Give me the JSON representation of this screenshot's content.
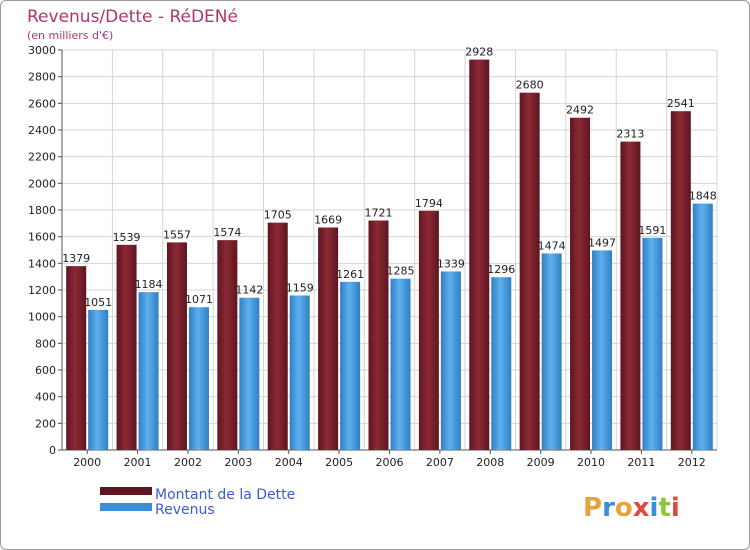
{
  "chart_data": {
    "type": "bar",
    "title": "Revenus/Dette - RéDENé",
    "subtitle": "(en milliers d'€)",
    "categories": [
      "2000",
      "2001",
      "2002",
      "2003",
      "2004",
      "2005",
      "2006",
      "2007",
      "2008",
      "2009",
      "2010",
      "2011",
      "2012"
    ],
    "series": [
      {
        "name": "Montant de la Dette",
        "color": "#7a1f2b",
        "values": [
          1379,
          1539,
          1557,
          1574,
          1705,
          1669,
          1721,
          1794,
          2928,
          2680,
          2492,
          2313,
          2541
        ]
      },
      {
        "name": "Revenus",
        "color": "#4a9fe0",
        "values": [
          1051,
          1184,
          1071,
          1142,
          1159,
          1261,
          1285,
          1339,
          1296,
          1474,
          1497,
          1591,
          1848
        ]
      }
    ],
    "ylim": [
      0,
      3000
    ],
    "yticks": [
      0,
      200,
      400,
      600,
      800,
      1000,
      1200,
      1400,
      1600,
      1800,
      2000,
      2200,
      2400,
      2600,
      2800,
      3000
    ],
    "grid": true,
    "legend_position": "bottom-left"
  },
  "logo": {
    "letters": [
      "P",
      "r",
      "o",
      "x",
      "i",
      "t",
      "i"
    ],
    "colors": [
      "#e8a23a",
      "#3a8fd9",
      "#e8a23a",
      "#e04a3a",
      "#3a8fd9",
      "#8cc63f",
      "#e04a3a"
    ]
  }
}
